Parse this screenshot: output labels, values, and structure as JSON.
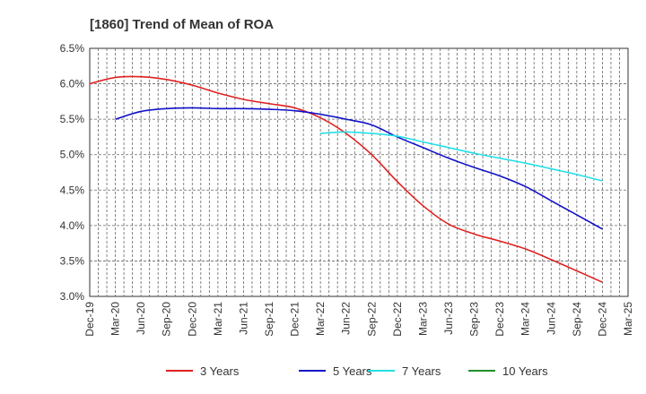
{
  "chart_data": {
    "type": "line",
    "title": "[1860]  Trend of Mean of ROA",
    "xlabel": "",
    "ylabel": "",
    "ylim": [
      3.0,
      6.5
    ],
    "yticks": [
      "3.0%",
      "3.5%",
      "4.0%",
      "4.5%",
      "5.0%",
      "5.5%",
      "6.0%",
      "6.5%"
    ],
    "ytick_values": [
      3.0,
      3.5,
      4.0,
      4.5,
      5.0,
      5.5,
      6.0,
      6.5
    ],
    "categories": [
      "Dec-19",
      "Mar-20",
      "Jun-20",
      "Sep-20",
      "Dec-20",
      "Mar-21",
      "Jun-21",
      "Sep-21",
      "Dec-21",
      "Mar-22",
      "Jun-22",
      "Sep-22",
      "Dec-22",
      "Mar-23",
      "Jun-23",
      "Sep-23",
      "Dec-23",
      "Mar-24",
      "Jun-24",
      "Sep-24",
      "Dec-24",
      "Mar-25"
    ],
    "grid": true,
    "legend_position": "bottom",
    "series": [
      {
        "name": "3 Years",
        "color": "#e02020",
        "values": [
          6.0,
          6.09,
          6.1,
          6.06,
          5.98,
          5.87,
          5.78,
          5.72,
          5.66,
          5.52,
          5.3,
          5.0,
          4.62,
          4.28,
          4.02,
          3.88,
          3.78,
          3.67,
          3.52,
          3.36,
          3.2,
          null
        ]
      },
      {
        "name": "5 Years",
        "color": "#1010c8",
        "values": [
          null,
          5.5,
          5.61,
          5.65,
          5.66,
          5.65,
          5.65,
          5.64,
          5.62,
          5.57,
          5.5,
          5.42,
          5.25,
          5.1,
          4.95,
          4.82,
          4.7,
          4.55,
          4.35,
          4.15,
          3.95,
          null
        ]
      },
      {
        "name": "7 Years",
        "color": "#22e0e8",
        "values": [
          null,
          null,
          null,
          null,
          null,
          null,
          null,
          null,
          null,
          5.3,
          5.32,
          5.3,
          5.26,
          5.18,
          5.1,
          5.02,
          4.95,
          4.88,
          4.8,
          4.72,
          4.63,
          null
        ]
      },
      {
        "name": "10 Years",
        "color": "#20902a",
        "values": [
          null,
          null,
          null,
          null,
          null,
          null,
          null,
          null,
          null,
          null,
          null,
          null,
          null,
          null,
          null,
          null,
          null,
          null,
          null,
          null,
          null,
          null
        ]
      }
    ]
  }
}
